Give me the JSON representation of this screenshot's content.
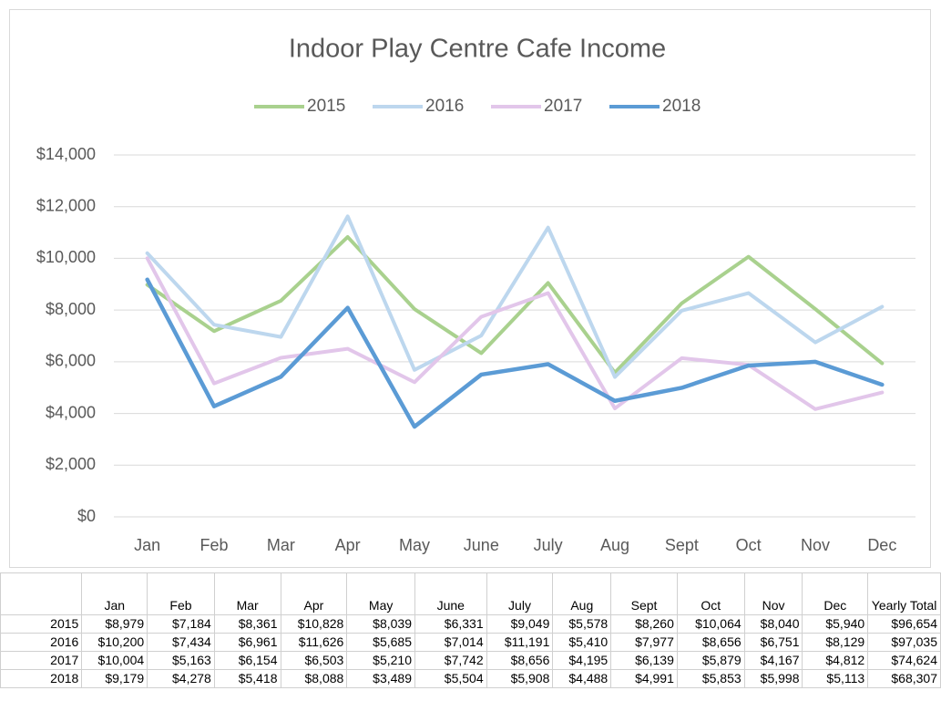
{
  "chart_data": {
    "type": "line",
    "title": "Indoor Play Centre Cafe Income",
    "categories": [
      "Jan",
      "Feb",
      "Mar",
      "Apr",
      "May",
      "June",
      "July",
      "Aug",
      "Sept",
      "Oct",
      "Nov",
      "Dec"
    ],
    "series": [
      {
        "name": "2015",
        "color": "#a9d18e",
        "values": [
          8979,
          7184,
          8361,
          10828,
          8039,
          6331,
          9049,
          5578,
          8260,
          10064,
          8040,
          5940
        ]
      },
      {
        "name": "2016",
        "color": "#bdd7ee",
        "values": [
          10200,
          7434,
          6961,
          11626,
          5685,
          7014,
          11191,
          5410,
          7977,
          8656,
          6751,
          8129
        ]
      },
      {
        "name": "2017",
        "color": "#e2c6ea",
        "values": [
          10004,
          5163,
          6154,
          6503,
          5210,
          7742,
          8656,
          4195,
          6139,
          5879,
          4167,
          4812
        ]
      },
      {
        "name": "2018",
        "color": "#5b9bd5",
        "values": [
          9179,
          4278,
          5418,
          8088,
          3489,
          5504,
          5908,
          4488,
          4991,
          5853,
          5998,
          5113
        ]
      }
    ],
    "ylim": [
      0,
      14000
    ],
    "yticks": [
      {
        "value": 0,
        "label": "$0"
      },
      {
        "value": 2000,
        "label": "$2,000"
      },
      {
        "value": 4000,
        "label": "$4,000"
      },
      {
        "value": 6000,
        "label": "$6,000"
      },
      {
        "value": 8000,
        "label": "$8,000"
      },
      {
        "value": 10000,
        "label": "$10,000"
      },
      {
        "value": 12000,
        "label": "$12,000"
      },
      {
        "value": 14000,
        "label": "$14,000"
      }
    ],
    "grid": true,
    "legend": "top"
  },
  "table": {
    "header": [
      "",
      "Jan",
      "Feb",
      "Mar",
      "Apr",
      "May",
      "June",
      "July",
      "Aug",
      "Sept",
      "Oct",
      "Nov",
      "Dec",
      "Yearly Total"
    ],
    "rows": [
      [
        "2015",
        "$8,979",
        "$7,184",
        "$8,361",
        "$10,828",
        "$8,039",
        "$6,331",
        "$9,049",
        "$5,578",
        "$8,260",
        "$10,064",
        "$8,040",
        "$5,940",
        "$96,654"
      ],
      [
        "2016",
        "$10,200",
        "$7,434",
        "$6,961",
        "$11,626",
        "$5,685",
        "$7,014",
        "$11,191",
        "$5,410",
        "$7,977",
        "$8,656",
        "$6,751",
        "$8,129",
        "$97,035"
      ],
      [
        "2017",
        "$10,004",
        "$5,163",
        "$6,154",
        "$6,503",
        "$5,210",
        "$7,742",
        "$8,656",
        "$4,195",
        "$6,139",
        "$5,879",
        "$4,167",
        "$4,812",
        "$74,624"
      ],
      [
        "2018",
        "$9,179",
        "$4,278",
        "$5,418",
        "$8,088",
        "$3,489",
        "$5,504",
        "$5,908",
        "$4,488",
        "$4,991",
        "$5,853",
        "$5,998",
        "$5,113",
        "$68,307"
      ]
    ]
  }
}
